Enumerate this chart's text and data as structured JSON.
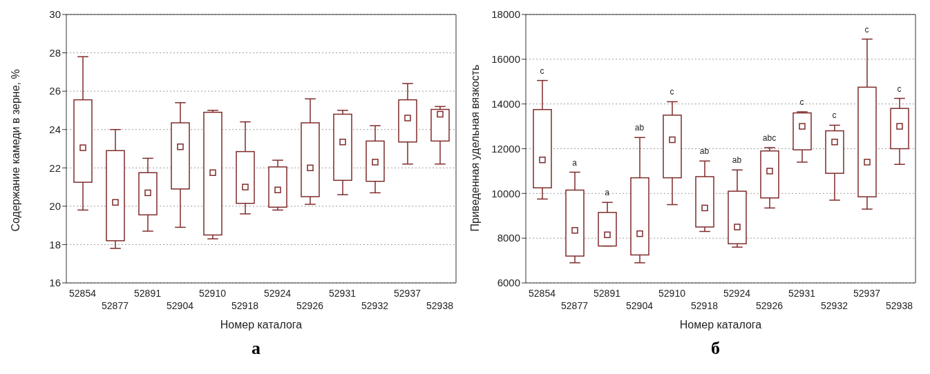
{
  "chart_data": [
    {
      "type": "box",
      "title": "а",
      "xlabel": "Номер каталога",
      "ylabel": "Содержание камеди в зерне, %",
      "categories": [
        "52854",
        "52877",
        "52891",
        "52904",
        "52910",
        "52918",
        "52924",
        "52926",
        "52931",
        "52932",
        "52937",
        "52938"
      ],
      "color": "#7f2a2a",
      "ylim": [
        16,
        30
      ],
      "yticks": [
        16,
        18,
        20,
        22,
        24,
        26,
        28,
        30
      ],
      "grid": "y",
      "line_style": "dotted",
      "boxes": [
        {
          "low": 19.8,
          "q1": 21.25,
          "median": 23.05,
          "q3": 25.55,
          "high": 27.8
        },
        {
          "low": 17.8,
          "q1": 18.2,
          "median": 20.2,
          "q3": 22.9,
          "high": 24.0
        },
        {
          "low": 18.7,
          "q1": 19.55,
          "median": 20.7,
          "q3": 21.75,
          "high": 22.5
        },
        {
          "low": 18.9,
          "q1": 20.9,
          "median": 23.1,
          "q3": 24.35,
          "high": 25.4
        },
        {
          "low": 18.3,
          "q1": 18.5,
          "median": 21.75,
          "q3": 24.9,
          "high": 25.0
        },
        {
          "low": 19.6,
          "q1": 20.15,
          "median": 21.0,
          "q3": 22.85,
          "high": 24.4
        },
        {
          "low": 19.8,
          "q1": 19.95,
          "median": 20.85,
          "q3": 22.05,
          "high": 22.4
        },
        {
          "low": 20.1,
          "q1": 20.5,
          "median": 22.0,
          "q3": 24.35,
          "high": 25.6
        },
        {
          "low": 20.6,
          "q1": 21.35,
          "median": 23.35,
          "q3": 24.8,
          "high": 25.0
        },
        {
          "low": 20.7,
          "q1": 21.3,
          "median": 22.3,
          "q3": 23.4,
          "high": 24.2
        },
        {
          "low": 22.2,
          "q1": 23.35,
          "median": 24.6,
          "q3": 25.55,
          "high": 26.4
        },
        {
          "low": 22.2,
          "q1": 23.4,
          "median": 24.8,
          "q3": 25.05,
          "high": 25.2
        }
      ]
    },
    {
      "type": "box",
      "title": "б",
      "xlabel": "Номер каталога",
      "ylabel": "Приведенная удельная вязкость",
      "categories": [
        "52854",
        "52877",
        "52891",
        "52904",
        "52910",
        "52918",
        "52924",
        "52926",
        "52931",
        "52932",
        "52937",
        "52938"
      ],
      "color": "#7f2a2a",
      "ylim": [
        6000,
        18000
      ],
      "yticks": [
        6000,
        8000,
        10000,
        12000,
        14000,
        16000,
        18000
      ],
      "grid": "y",
      "line_style": "dotted",
      "boxes": [
        {
          "low": 9750,
          "q1": 10250,
          "median": 11500,
          "q3": 13750,
          "high": 15050
        },
        {
          "low": 6900,
          "q1": 7200,
          "median": 8350,
          "q3": 10150,
          "high": 10950
        },
        {
          "low": 7650,
          "q1": 7650,
          "median": 8150,
          "q3": 9150,
          "high": 9600
        },
        {
          "low": 6900,
          "q1": 7250,
          "median": 8200,
          "q3": 10700,
          "high": 12500
        },
        {
          "low": 9500,
          "q1": 10700,
          "median": 12400,
          "q3": 13500,
          "high": 14100
        },
        {
          "low": 8300,
          "q1": 8500,
          "median": 9350,
          "q3": 10750,
          "high": 11450
        },
        {
          "low": 7600,
          "q1": 7750,
          "median": 8500,
          "q3": 10100,
          "high": 11050
        },
        {
          "low": 9350,
          "q1": 9800,
          "median": 11000,
          "q3": 11900,
          "high": 12050
        },
        {
          "low": 11400,
          "q1": 11950,
          "median": 13000,
          "q3": 13600,
          "high": 13650
        },
        {
          "low": 9700,
          "q1": 10900,
          "median": 12300,
          "q3": 12800,
          "high": 13050
        },
        {
          "low": 9300,
          "q1": 9850,
          "median": 11400,
          "q3": 14750,
          "high": 16900
        },
        {
          "low": 11300,
          "q1": 12000,
          "median": 13000,
          "q3": 13800,
          "high": 14250
        }
      ],
      "annotations": [
        {
          "text": "c",
          "x": "52854",
          "y": 15050
        },
        {
          "text": "a",
          "x": "52877",
          "y": 10950
        },
        {
          "text": "a",
          "x": "52891",
          "y": 9600
        },
        {
          "text": "ab",
          "x": "52904",
          "y": 12500
        },
        {
          "text": "c",
          "x": "52910",
          "y": 14100
        },
        {
          "text": "ab",
          "x": "52918",
          "y": 11450
        },
        {
          "text": "ab",
          "x": "52924",
          "y": 11050
        },
        {
          "text": "abc",
          "x": "52926",
          "y": 12050
        },
        {
          "text": "c",
          "x": "52931",
          "y": 13650
        },
        {
          "text": "c",
          "x": "52932",
          "y": 13050
        },
        {
          "text": "c",
          "x": "52937",
          "y": 16900
        },
        {
          "text": "c",
          "x": "52938",
          "y": 14250
        }
      ]
    }
  ]
}
